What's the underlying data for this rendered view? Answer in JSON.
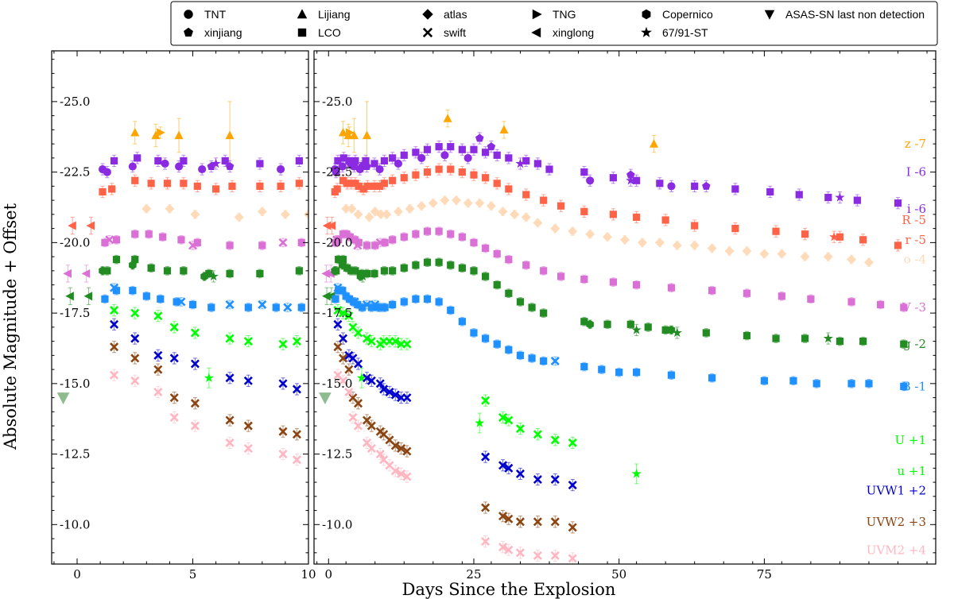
{
  "chart_data": {
    "type": "scatter",
    "xlabel": "Days Since the Explosion",
    "ylabel": "Absolute Magnitude + Offset",
    "y_inverted": true,
    "ylim": [
      -8.6,
      -26.8
    ],
    "panels": [
      {
        "name": "left",
        "xlim": [
          -1.1,
          10.0
        ],
        "xticks": [
          0,
          5,
          10
        ],
        "xtick_labels": [
          "0",
          "5",
          "10"
        ]
      },
      {
        "name": "right",
        "xlim": [
          -2.5,
          104.5
        ],
        "xticks": [
          0,
          25,
          50,
          75
        ],
        "xtick_labels": [
          "0",
          "25",
          "50",
          "75"
        ]
      }
    ],
    "yticks": [
      -25.0,
      -22.5,
      -20.0,
      -17.5,
      -15.0,
      -12.5,
      -10.0
    ],
    "ytick_labels": [
      "-25.0",
      "-22.5",
      "-20.0",
      "-17.5",
      "-15.0",
      "-12.5",
      "-10.0"
    ],
    "legend": {
      "placement": "top",
      "entries": [
        {
          "marker": "circle",
          "label": "TNT"
        },
        {
          "marker": "triangle-up",
          "label": "Lijiang"
        },
        {
          "marker": "diamond",
          "label": "atlas"
        },
        {
          "marker": "triangle-right",
          "label": "TNG"
        },
        {
          "marker": "hexagon",
          "label": "Copernico"
        },
        {
          "marker": "triangle-down",
          "label": "ASAS-SN last non detection"
        },
        {
          "marker": "pentagon",
          "label": "xinjiang"
        },
        {
          "marker": "square",
          "label": "LCO"
        },
        {
          "marker": "x",
          "label": "swift"
        },
        {
          "marker": "triangle-left",
          "label": "xinglong"
        },
        {
          "marker": "star",
          "label": "67/91-ST"
        }
      ]
    },
    "band_labels": [
      {
        "label": "z -7",
        "color": "#FFA500",
        "y": -23.5
      },
      {
        "label": "I -6",
        "color": "#8A2BE2",
        "y": -22.5
      },
      {
        "label": "i -6",
        "color": "#8A2BE2",
        "y": -21.2
      },
      {
        "label": "R -5",
        "color": "#FF6347",
        "y": -20.8
      },
      {
        "label": "r -5",
        "color": "#FF6347",
        "y": -20.1
      },
      {
        "label": "o -4",
        "color": "#FFDAB9",
        "y": -19.4
      },
      {
        "label": "V -3",
        "color": "#DA70D6",
        "y": -17.7
      },
      {
        "label": "g -2",
        "color": "#228B22",
        "y": -16.4
      },
      {
        "label": "B -1",
        "color": "#1E90FF",
        "y": -14.9
      },
      {
        "label": "U +1",
        "color": "#00FF00",
        "y": -13.0
      },
      {
        "label": "u +1",
        "color": "#00FF00",
        "y": -11.9
      },
      {
        "label": "UVW1 +2",
        "color": "#0000CD",
        "y": -11.2
      },
      {
        "label": "UVW2 +3",
        "color": "#8B4513",
        "y": -10.1
      },
      {
        "label": "UVM2 +4",
        "color": "#FFB6C1",
        "y": -9.1
      }
    ],
    "series": [
      {
        "band": "z",
        "color": "#FFA500",
        "marker": "triangle-up",
        "x": [
          2.5,
          3.4,
          4.4,
          6.6,
          20.5,
          30.2,
          56.0
        ],
        "y": [
          -23.9,
          -23.8,
          -23.8,
          -23.8,
          -24.4,
          -24.0,
          -23.5
        ],
        "err": [
          0.4,
          0.4,
          0.6,
          1.2,
          0.3,
          0.3,
          0.3
        ]
      },
      {
        "band": "z",
        "color": "#FFA500",
        "marker": "triangle-right",
        "x": [
          3.6
        ],
        "y": [
          -23.9
        ],
        "err": [
          0.2
        ]
      },
      {
        "band": "I",
        "color": "#8A2BE2",
        "marker": "square",
        "x": [
          1.6,
          2.6,
          3.5,
          4.6,
          6.4,
          7.9,
          9.6,
          11,
          13,
          15,
          17,
          19,
          21,
          23,
          25,
          27,
          29,
          31,
          34,
          36,
          38,
          44,
          49,
          53,
          57,
          63,
          70,
          76,
          81,
          86,
          91,
          98
        ],
        "y": [
          -22.9,
          -23.0,
          -22.9,
          -22.9,
          -22.9,
          -22.8,
          -22.9,
          -23.0,
          -23.1,
          -23.2,
          -23.3,
          -23.4,
          -23.4,
          -23.3,
          -23.3,
          -23.2,
          -23.1,
          -23.0,
          -22.9,
          -22.8,
          -22.6,
          -22.5,
          -22.3,
          -22.2,
          -22.1,
          -22.0,
          -21.9,
          -21.8,
          -21.7,
          -21.6,
          -21.5,
          -21.4
        ],
        "err": [
          0.2
        ]
      },
      {
        "band": "I",
        "color": "#8A2BE2",
        "marker": "circle",
        "x": [
          1.1,
          1.3,
          2.4,
          3.8,
          4.4,
          5.4,
          8.8,
          12,
          16,
          20,
          24,
          45,
          59
        ],
        "y": [
          -22.6,
          -22.5,
          -22.7,
          -22.8,
          -22.7,
          -22.6,
          -22.6,
          -22.8,
          -23.0,
          -23.1,
          -23.0,
          -22.2,
          -22.0
        ],
        "err": [
          0.2
        ]
      },
      {
        "band": "I",
        "color": "#8A2BE2",
        "marker": "pentagon",
        "x": [
          5.8,
          6.6,
          26,
          28,
          52,
          65
        ],
        "y": [
          -22.7,
          -22.7,
          -23.7,
          -23.4,
          -22.4,
          -22.0
        ],
        "err": [
          0.2
        ]
      },
      {
        "band": "I",
        "color": "#8A2BE2",
        "marker": "star",
        "x": [
          6.0,
          33,
          52,
          88
        ],
        "y": [
          -22.8,
          -22.8,
          -22.2,
          -21.6
        ],
        "err": [
          0.2
        ]
      },
      {
        "band": "R",
        "color": "#FF6347",
        "marker": "square",
        "x": [
          1.1,
          1.5,
          2.5,
          3.2,
          3.9,
          4.6,
          5.2,
          6.0,
          6.7,
          7.9,
          8.8,
          9.6,
          11,
          13,
          15,
          17,
          19,
          21,
          23,
          25,
          27,
          29,
          31,
          34,
          37,
          40,
          44,
          49,
          53,
          58,
          63,
          70,
          77,
          82,
          88,
          92,
          98
        ],
        "y": [
          -21.8,
          -21.9,
          -22.2,
          -22.1,
          -22.1,
          -22.1,
          -22.0,
          -21.9,
          -22.0,
          -22.0,
          -22.0,
          -22.1,
          -22.2,
          -22.3,
          -22.4,
          -22.5,
          -22.6,
          -22.6,
          -22.5,
          -22.4,
          -22.3,
          -22.1,
          -21.9,
          -21.7,
          -21.5,
          -21.3,
          -21.1,
          -21.0,
          -20.9,
          -20.8,
          -20.6,
          -20.5,
          -20.4,
          -20.3,
          -20.2,
          -20.1,
          -19.9
        ],
        "err": [
          0.2
        ]
      },
      {
        "band": "R",
        "color": "#FF6347",
        "marker": "triangle-left",
        "x": [
          0.6,
          -0.2
        ],
        "y": [
          -20.6,
          -20.6
        ],
        "err": [
          0.3
        ]
      },
      {
        "band": "R",
        "color": "#FF6347",
        "marker": "star",
        "x": [
          87
        ],
        "y": [
          -20.2
        ],
        "err": [
          0.2
        ]
      },
      {
        "band": "o",
        "color": "#FFDAB9",
        "marker": "diamond",
        "x": [
          3.0,
          5.1,
          8.0,
          9.0,
          4,
          7,
          10,
          12,
          14,
          16,
          18,
          20,
          22,
          24,
          26,
          28,
          30,
          32,
          34,
          36,
          39,
          42,
          45,
          48,
          51,
          54,
          57,
          60,
          63,
          66,
          69,
          72,
          75,
          78,
          82,
          86,
          90,
          93
        ],
        "y": [
          -21.2,
          -21.0,
          -21.1,
          -21.0,
          -21.2,
          -20.9,
          -21.0,
          -21.1,
          -21.2,
          -21.3,
          -21.4,
          -21.5,
          -21.5,
          -21.4,
          -21.4,
          -21.3,
          -21.1,
          -21.0,
          -20.9,
          -20.7,
          -20.5,
          -20.4,
          -20.3,
          -20.2,
          -20.1,
          -20.0,
          -20.0,
          -19.9,
          -19.9,
          -19.8,
          -19.7,
          -19.7,
          -19.6,
          -19.6,
          -19.5,
          -19.5,
          -19.4,
          -19.3
        ],
        "err": [
          0.15
        ]
      },
      {
        "band": "V",
        "color": "#DA70D6",
        "marker": "square",
        "x": [
          1.2,
          1.7,
          2.5,
          3.1,
          3.7,
          4.5,
          5.2,
          6.6,
          8.0,
          9.7,
          11,
          13,
          15,
          17,
          19,
          21,
          23,
          25,
          27,
          29,
          31,
          34,
          37,
          40,
          44,
          49,
          53,
          59,
          66,
          72,
          78,
          83,
          90,
          95,
          99
        ],
        "y": [
          -20.0,
          -20.1,
          -20.3,
          -20.3,
          -20.2,
          -20.1,
          -20.0,
          -19.9,
          -19.9,
          -20.0,
          -20.1,
          -20.2,
          -20.3,
          -20.4,
          -20.4,
          -20.3,
          -20.2,
          -20.0,
          -19.8,
          -19.6,
          -19.4,
          -19.2,
          -19.0,
          -18.8,
          -18.7,
          -18.6,
          -18.5,
          -18.4,
          -18.3,
          -18.2,
          -18.1,
          -18.0,
          -17.9,
          -17.8,
          -17.7
        ],
        "err": [
          0.15
        ]
      },
      {
        "band": "V",
        "color": "#DA70D6",
        "marker": "x",
        "x": [
          5.0,
          8.9,
          1.4
        ],
        "y": [
          -19.9,
          -20.0,
          -20.1
        ],
        "err": [
          0.15
        ]
      },
      {
        "band": "V",
        "color": "#DA70D6",
        "marker": "triangle-left",
        "x": [
          0.4,
          -0.4
        ],
        "y": [
          -18.9,
          -18.9
        ],
        "err": [
          0.3
        ]
      },
      {
        "band": "g",
        "color": "#228B22",
        "marker": "square",
        "x": [
          1.3,
          1.7,
          2.5,
          3.2,
          3.9,
          4.6,
          5.7,
          6.6,
          7.9,
          9.6,
          11,
          13,
          15,
          17,
          19,
          21,
          23,
          25,
          27,
          29,
          31,
          33,
          35,
          37,
          44,
          48,
          52,
          55,
          58,
          65,
          72,
          77,
          82,
          88,
          92,
          99
        ],
        "y": [
          -19.0,
          -19.4,
          -19.4,
          -19.1,
          -19.0,
          -19.0,
          -18.9,
          -18.9,
          -18.9,
          -19.0,
          -19.0,
          -19.1,
          -19.2,
          -19.3,
          -19.3,
          -19.2,
          -19.1,
          -19.0,
          -18.8,
          -18.5,
          -18.2,
          -17.9,
          -17.7,
          -17.5,
          -17.2,
          -17.1,
          -17.1,
          -17.0,
          -16.9,
          -16.8,
          -16.7,
          -16.6,
          -16.6,
          -16.5,
          -16.5,
          -16.4
        ],
        "err": [
          0.15
        ]
      },
      {
        "band": "g",
        "color": "#228B22",
        "marker": "hexagon",
        "x": [
          1.1,
          2.4,
          5.5,
          45,
          59
        ],
        "y": [
          -19.0,
          -19.2,
          -18.8,
          -17.1,
          -16.9
        ],
        "err": [
          0.15
        ]
      },
      {
        "band": "g",
        "color": "#228B22",
        "marker": "triangle-left",
        "x": [
          0.5,
          -0.3
        ],
        "y": [
          -18.1,
          -18.1
        ],
        "err": [
          0.3
        ]
      },
      {
        "band": "g",
        "color": "#228B22",
        "marker": "star",
        "x": [
          5.9,
          53,
          60,
          86
        ],
        "y": [
          -18.8,
          -16.9,
          -16.8,
          -16.6
        ],
        "err": [
          0.2
        ]
      },
      {
        "band": "B",
        "color": "#1E90FF",
        "marker": "square",
        "x": [
          1.2,
          1.7,
          2.4,
          3.0,
          3.6,
          4.3,
          5.0,
          5.8,
          7.4,
          8.6,
          9.7,
          11,
          13,
          15,
          17,
          19,
          21,
          23,
          25,
          27,
          29,
          31,
          33,
          35,
          37,
          44,
          47,
          50,
          53,
          59,
          66,
          75,
          80,
          84,
          90,
          93,
          99
        ],
        "y": [
          -18.0,
          -18.3,
          -18.3,
          -18.1,
          -18.0,
          -17.9,
          -17.8,
          -17.7,
          -17.7,
          -17.7,
          -17.7,
          -17.8,
          -17.9,
          -18.0,
          -18.0,
          -17.9,
          -17.6,
          -17.2,
          -16.8,
          -16.6,
          -16.4,
          -16.2,
          -16.0,
          -15.9,
          -15.8,
          -15.6,
          -15.5,
          -15.4,
          -15.4,
          -15.3,
          -15.2,
          -15.1,
          -15.1,
          -15.0,
          -15.0,
          -15.0,
          -14.9
        ],
        "err": [
          0.15
        ]
      },
      {
        "band": "B",
        "color": "#1E90FF",
        "marker": "x",
        "x": [
          1.6,
          4.5,
          6.6,
          8.0,
          9.1,
          39
        ],
        "y": [
          -18.4,
          -17.9,
          -17.8,
          -17.8,
          -17.7,
          -15.8
        ],
        "err": [
          0.15
        ]
      },
      {
        "band": "U",
        "color": "#00FF00",
        "marker": "x",
        "x": [
          1.6,
          2.5,
          3.5,
          4.2,
          5.1,
          6.6,
          7.4,
          8.9,
          9.5,
          10.5,
          11.5,
          12.5,
          13.5,
          27,
          30,
          31,
          33,
          36,
          39,
          42
        ],
        "y": [
          -17.6,
          -17.5,
          -17.4,
          -17.0,
          -16.8,
          -16.6,
          -16.5,
          -16.4,
          -16.5,
          -16.5,
          -16.5,
          -16.4,
          -16.4,
          -14.4,
          -13.8,
          -13.7,
          -13.4,
          -13.2,
          -13.0,
          -12.9
        ],
        "err": [
          0.2
        ]
      },
      {
        "band": "u",
        "color": "#00FF00",
        "marker": "star",
        "x": [
          5.7,
          26,
          53
        ],
        "y": [
          -15.2,
          -13.6,
          -11.8
        ],
        "err": [
          0.35
        ]
      },
      {
        "band": "UVW1",
        "color": "#0000CD",
        "marker": "x",
        "x": [
          1.6,
          2.5,
          3.5,
          4.2,
          5.1,
          6.6,
          7.4,
          8.9,
          9.5,
          10.5,
          11.5,
          12.5,
          13.5,
          27,
          30,
          31,
          33,
          36,
          39,
          42
        ],
        "y": [
          -17.1,
          -16.6,
          -16.0,
          -15.9,
          -15.7,
          -15.2,
          -15.1,
          -15.0,
          -14.8,
          -14.7,
          -14.6,
          -14.5,
          -14.5,
          -12.4,
          -12.1,
          -12.0,
          -11.8,
          -11.6,
          -11.6,
          -11.4
        ],
        "err": [
          0.2
        ]
      },
      {
        "band": "UVW2",
        "color": "#8B4513",
        "marker": "x",
        "x": [
          1.6,
          2.5,
          3.5,
          4.2,
          5.1,
          6.6,
          7.4,
          8.9,
          9.5,
          10.5,
          11.5,
          12.5,
          13.5,
          27,
          30,
          31,
          33,
          36,
          39,
          42
        ],
        "y": [
          -16.3,
          -15.9,
          -15.5,
          -14.5,
          -14.3,
          -13.7,
          -13.5,
          -13.3,
          -13.2,
          -13.0,
          -12.8,
          -12.7,
          -12.6,
          -10.6,
          -10.3,
          -10.2,
          -10.1,
          -10.1,
          -10.1,
          -9.9
        ],
        "err": [
          0.2
        ]
      },
      {
        "band": "UVM2",
        "color": "#FFB6C1",
        "marker": "x",
        "x": [
          1.6,
          2.5,
          3.5,
          4.2,
          5.1,
          6.6,
          7.4,
          8.9,
          9.5,
          10.5,
          11.5,
          12.5,
          13.5,
          27,
          30,
          31,
          33,
          36,
          39,
          42
        ],
        "y": [
          -15.3,
          -15.1,
          -14.7,
          -13.8,
          -13.5,
          -12.9,
          -12.7,
          -12.5,
          -12.3,
          -12.1,
          -11.9,
          -11.8,
          -11.7,
          -9.4,
          -9.2,
          -9.1,
          -9.0,
          -8.9,
          -8.9,
          -8.8
        ],
        "err": [
          0.2
        ]
      },
      {
        "band": "ASAS-SN",
        "color": "#8FBC8F",
        "marker": "triangle-down",
        "x": [
          -0.6
        ],
        "y": [
          -14.5
        ],
        "err": [
          0
        ]
      }
    ]
  }
}
